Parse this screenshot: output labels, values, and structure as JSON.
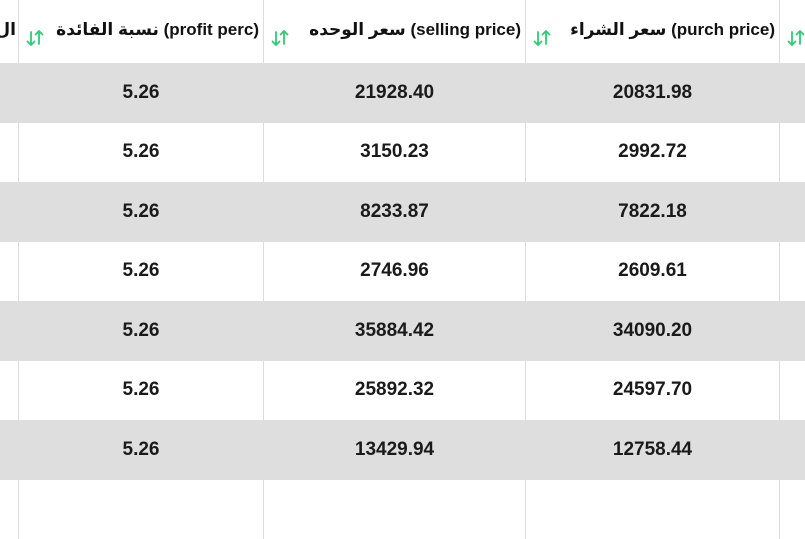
{
  "columns": {
    "partial": {
      "label": "ال"
    },
    "profit": {
      "label": "نسبة الفائدة (profit perc)"
    },
    "selling": {
      "label": "سعر الوحده (selling price)"
    },
    "purchase": {
      "label": "سعر الشراء (purch price)"
    }
  },
  "colors": {
    "sort_icon": "#2ecc71",
    "row_shade": "#dedede",
    "divider": "#dcdcdc"
  },
  "icons": {
    "sort": "sort-arrows-icon"
  },
  "rows": [
    {
      "profit": "5.26",
      "selling": "21928.40",
      "purchase": "20831.98"
    },
    {
      "profit": "5.26",
      "selling": "3150.23",
      "purchase": "2992.72"
    },
    {
      "profit": "5.26",
      "selling": "8233.87",
      "purchase": "7822.18"
    },
    {
      "profit": "5.26",
      "selling": "2746.96",
      "purchase": "2609.61"
    },
    {
      "profit": "5.26",
      "selling": "35884.42",
      "purchase": "34090.20"
    },
    {
      "profit": "5.26",
      "selling": "25892.32",
      "purchase": "24597.70"
    },
    {
      "profit": "5.26",
      "selling": "13429.94",
      "purchase": "12758.44"
    },
    {
      "profit": "",
      "selling": "",
      "purchase": ""
    }
  ]
}
